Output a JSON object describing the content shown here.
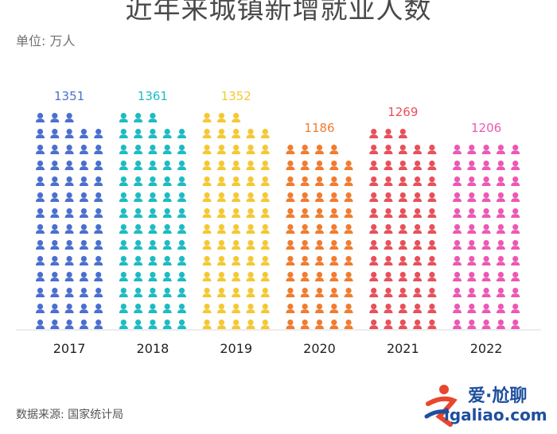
{
  "title": "近年来城镇新增就业人数",
  "unit_label": "单位: 万人",
  "source_label": "数据来源: 国家统计局",
  "logo": {
    "text": "爱·尬聊",
    "url": "igaliao.com"
  },
  "chart_data": {
    "type": "bar",
    "style": "pictograph",
    "title": "近年来城镇新增就业人数",
    "xlabel": "",
    "ylabel": "",
    "unit": "万人",
    "categories": [
      "2017",
      "2018",
      "2019",
      "2020",
      "2021",
      "2022"
    ],
    "values": [
      1351,
      1361,
      1352,
      1186,
      1269,
      1206
    ],
    "colors": [
      "#4a6fd0",
      "#1bbcc4",
      "#f5c832",
      "#f07c30",
      "#e8505a",
      "#ec58b4"
    ],
    "grid": false,
    "legend": "none"
  }
}
